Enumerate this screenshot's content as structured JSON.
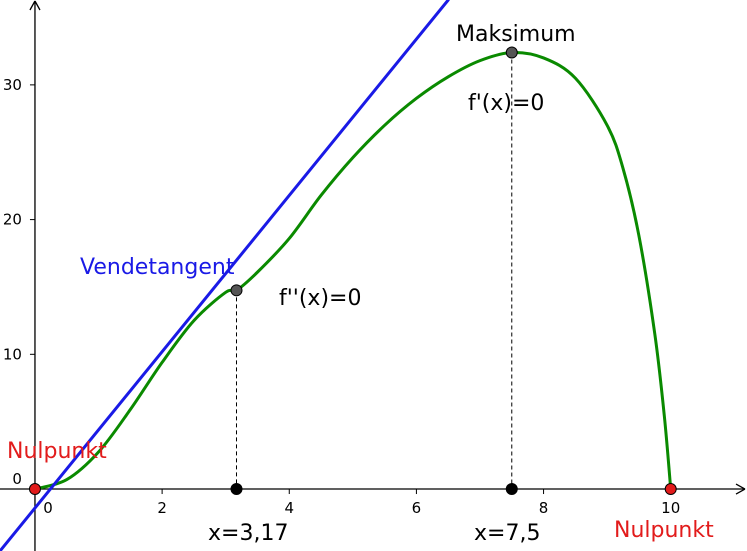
{
  "chart_data": {
    "type": "line",
    "xlim": [
      -0.55,
      11.2
    ],
    "ylim": [
      -4.6,
      36.3
    ],
    "x_ticks": [
      0,
      2,
      4,
      6,
      8,
      10
    ],
    "y_ticks": [
      0,
      10,
      20,
      30
    ],
    "x_tick_labels": [
      "0",
      "2",
      "4",
      "6",
      "8",
      "10"
    ],
    "y_tick_labels": [
      "0",
      "10",
      "20",
      "30"
    ],
    "grid": false,
    "series": [
      {
        "name": "",
        "color": "#0a8a00",
        "x": [
          0,
          0.5,
          1,
          1.5,
          2,
          2.5,
          3,
          3.17,
          3.5,
          4,
          4.5,
          5,
          5.5,
          6,
          6.5,
          7,
          7.5,
          8,
          8.5,
          9,
          9.25,
          9.5,
          9.75,
          9.9,
          10
        ],
        "y": [
          0,
          0.7,
          2.75,
          5.9,
          9.4,
          12.5,
          14.6,
          14.75,
          16.1,
          18.6,
          21.8,
          24.6,
          27.0,
          29.0,
          30.6,
          31.8,
          32.4,
          32.0,
          30.5,
          27.0,
          23.8,
          18.8,
          11.5,
          5.4,
          0
        ]
      },
      {
        "name": "Vendetangent",
        "color": "#1a1ae6",
        "x": [
          -0.55,
          6.5
        ],
        "y": [
          -4.6,
          36.3
        ]
      }
    ],
    "points": [
      {
        "id": "nulpunkt-origin",
        "x": 0,
        "y": 0,
        "color": "#e21b1b"
      },
      {
        "id": "nulpunkt-10",
        "x": 10,
        "y": 0,
        "color": "#e21b1b"
      },
      {
        "id": "inflection-point",
        "x": 3.17,
        "y": 14.75,
        "color": "#555555"
      },
      {
        "id": "maximum-point",
        "x": 7.5,
        "y": 32.4,
        "color": "#555555"
      },
      {
        "id": "foot-3-17",
        "x": 3.17,
        "y": 0,
        "color": "#000000"
      },
      {
        "id": "foot-7-5",
        "x": 7.5,
        "y": 0,
        "color": "#000000"
      }
    ],
    "annotations": {
      "maksimum": "Maksimum",
      "f_prime": "f'(x)=0",
      "vendetangent": "Vendetangent",
      "f_double_prime": "f''(x)=0",
      "nulpunkt_left": "Nulpunkt",
      "nulpunkt_right": "Nulpunkt",
      "x_inflection": "x=3,17",
      "x_maximum": "x=7,5"
    },
    "colors": {
      "curve": "#0a8a00",
      "tangent": "#1a1ae6",
      "nulpunkt": "#e21b1b",
      "point": "#555555"
    }
  }
}
